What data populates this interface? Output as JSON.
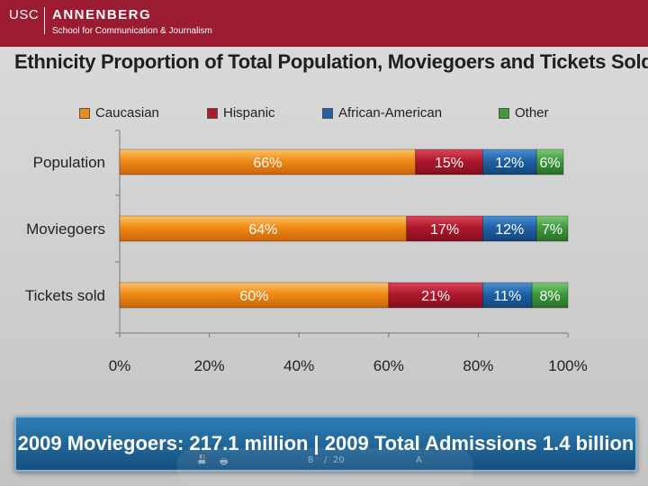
{
  "header": {
    "brand": "USC",
    "school": "ANNENBERG",
    "subtitle": "School for Communication & Journalism"
  },
  "colors": {
    "header_bg": "#9b1b30",
    "caucasian": "#f08a16",
    "hispanic": "#b0182c",
    "african_american": "#1e62a6",
    "other": "#3e9a3c"
  },
  "chart_data": {
    "type": "bar",
    "orientation": "horizontal",
    "stacked": true,
    "percent": true,
    "title": "Ethnicity Proportion of Total Population, Moviegoers and Tickets Sold",
    "categories": [
      "Population",
      "Moviegoers",
      "Tickets sold"
    ],
    "series": [
      {
        "name": "Caucasian",
        "values": [
          66,
          64,
          60
        ],
        "labels": [
          "66%",
          "64%",
          "60%"
        ]
      },
      {
        "name": "Hispanic",
        "values": [
          15,
          17,
          21
        ],
        "labels": [
          "15%",
          "17%",
          "21%"
        ]
      },
      {
        "name": "African-American",
        "values": [
          12,
          12,
          11
        ],
        "labels": [
          "12%",
          "12%",
          "11%"
        ]
      },
      {
        "name": "Other",
        "values": [
          6,
          7,
          8
        ],
        "labels": [
          "6%",
          "7%",
          "8%"
        ]
      }
    ],
    "x_ticks": [
      "0%",
      "20%",
      "40%",
      "60%",
      "80%",
      "100%"
    ],
    "xlim": [
      0,
      100
    ],
    "legend_position": "top"
  },
  "banner": {
    "text": "2009 Moviegoers: 217.1 million | 2009 Total Admissions 1.4 billion"
  },
  "pager": {
    "page": "8",
    "separator": "/",
    "total": "20"
  }
}
